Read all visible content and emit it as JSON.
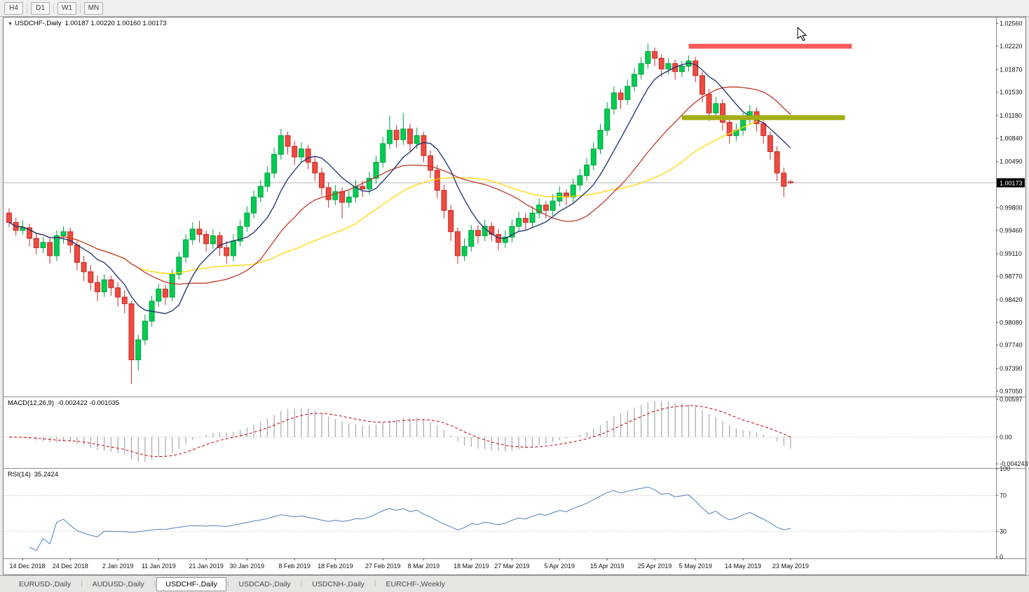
{
  "toolbar": {
    "timeframes": [
      "H4",
      "D1",
      "W1",
      "MN"
    ]
  },
  "chart": {
    "symbol_label": "USDCHF-,Daily",
    "ohlc_label": "1.00187 1.00220 1.00160 1.00173",
    "current_price": "1.00173",
    "price_axis_labels": [
      "1.02560",
      "1.02220",
      "1.01870",
      "1.01530",
      "1.01180",
      "1.00840",
      "1.00490",
      "0.99800",
      "0.99460",
      "0.99110",
      "0.98770",
      "0.98420",
      "0.98080",
      "0.97740",
      "0.97390",
      "0.97050"
    ],
    "time_axis_labels": [
      {
        "text": "14 Dec 2018",
        "bar": 2
      },
      {
        "text": "24 Dec 2018",
        "bar": 9
      },
      {
        "text": "2 Jan 2019",
        "bar": 16
      },
      {
        "text": "11 Jan 2019",
        "bar": 22
      },
      {
        "text": "21 Jan 2019",
        "bar": 29
      },
      {
        "text": "30 Jan 2019",
        "bar": 35
      },
      {
        "text": "8 Feb 2019",
        "bar": 42
      },
      {
        "text": "18 Feb 2019",
        "bar": 48
      },
      {
        "text": "27 Feb 2019",
        "bar": 55
      },
      {
        "text": "8 Mar 2019",
        "bar": 61
      },
      {
        "text": "18 Mar 2019",
        "bar": 68
      },
      {
        "text": "27 Mar 2019",
        "bar": 74
      },
      {
        "text": "5 Apr 2019",
        "bar": 81
      },
      {
        "text": "15 Apr 2019",
        "bar": 88
      },
      {
        "text": "25 Apr 2019",
        "bar": 95
      },
      {
        "text": "5 May 2019",
        "bar": 101
      },
      {
        "text": "14 May 2019",
        "bar": 108
      },
      {
        "text": "23 May 2019",
        "bar": 115
      }
    ],
    "levels": [
      {
        "name": "resistance",
        "price": 1.0222,
        "bar_start": 100,
        "bar_end": 124,
        "color": "#f75d5d"
      },
      {
        "name": "support",
        "price": 1.0115,
        "bar_start": 99,
        "bar_end": 123,
        "color": "#a3ad14"
      }
    ],
    "indicators": {
      "macd": {
        "label": "MACD(12,26,9)",
        "values": "-0.002422 -0.001035",
        "axis_labels": [
          "0.00597",
          "0.00",
          "-0.004243"
        ],
        "params": [
          12,
          26,
          9
        ]
      },
      "rsi": {
        "label": "RSI(14)",
        "value": "35.2424",
        "axis_labels": [
          "100",
          "70",
          "30",
          "0"
        ],
        "period": 14,
        "levels": [
          70,
          30
        ]
      }
    },
    "colors": {
      "candle_up": "#00cd52",
      "candle_up_border": "#00a041",
      "candle_down": "#ef4a41",
      "candle_down_border": "#c03028",
      "price_line": "#b8b8b8",
      "macd_histogram": "#a8a8a8",
      "macd_signal": "#bf0000",
      "rsi_line": "#4f81bd",
      "badge_bg": "#000000"
    }
  },
  "chart_data": {
    "type": "candlestick",
    "symbol": "USDCHF-",
    "timeframe": "Daily",
    "ylim": [
      0.9697,
      1.0265
    ],
    "moving_averages": [
      {
        "name": "slow",
        "period": 34,
        "color": "#ffd800"
      },
      {
        "name": "medium",
        "period": 20,
        "color": "#c0392b"
      },
      {
        "name": "fast",
        "period": 8,
        "color": "#1a2e6e"
      }
    ],
    "ohlc": [
      [
        0.9972,
        0.9979,
        0.9951,
        0.9958
      ],
      [
        0.9958,
        0.9965,
        0.9938,
        0.9946
      ],
      [
        0.9946,
        0.9961,
        0.994,
        0.995
      ],
      [
        0.995,
        0.9956,
        0.9922,
        0.9934
      ],
      [
        0.9934,
        0.9941,
        0.991,
        0.992
      ],
      [
        0.992,
        0.9936,
        0.9912,
        0.9928
      ],
      [
        0.9928,
        0.9934,
        0.9896,
        0.9908
      ],
      [
        0.9908,
        0.9946,
        0.99,
        0.9938
      ],
      [
        0.9938,
        0.9952,
        0.9926,
        0.9944
      ],
      [
        0.9944,
        0.995,
        0.9912,
        0.9924
      ],
      [
        0.9924,
        0.993,
        0.9886,
        0.9898
      ],
      [
        0.9898,
        0.9908,
        0.987,
        0.9884
      ],
      [
        0.9884,
        0.9894,
        0.9856,
        0.9868
      ],
      [
        0.9868,
        0.9878,
        0.984,
        0.9854
      ],
      [
        0.9854,
        0.988,
        0.9846,
        0.9872
      ],
      [
        0.9872,
        0.9878,
        0.9848,
        0.986
      ],
      [
        0.986,
        0.9868,
        0.9832,
        0.9846
      ],
      [
        0.9846,
        0.9856,
        0.9822,
        0.9836
      ],
      [
        0.9836,
        0.984,
        0.9716,
        0.9752
      ],
      [
        0.9752,
        0.979,
        0.9736,
        0.9782
      ],
      [
        0.9782,
        0.982,
        0.9774,
        0.981
      ],
      [
        0.981,
        0.9848,
        0.9802,
        0.984
      ],
      [
        0.984,
        0.9866,
        0.9832,
        0.9858
      ],
      [
        0.9858,
        0.9864,
        0.9834,
        0.9846
      ],
      [
        0.9846,
        0.9888,
        0.984,
        0.988
      ],
      [
        0.988,
        0.9914,
        0.9872,
        0.9906
      ],
      [
        0.9906,
        0.994,
        0.9898,
        0.9932
      ],
      [
        0.9932,
        0.9958,
        0.9924,
        0.9948
      ],
      [
        0.9948,
        0.996,
        0.9928,
        0.994
      ],
      [
        0.994,
        0.9946,
        0.9914,
        0.9926
      ],
      [
        0.9926,
        0.9948,
        0.9918,
        0.9938
      ],
      [
        0.9938,
        0.9944,
        0.9908,
        0.992
      ],
      [
        0.992,
        0.993,
        0.9896,
        0.9908
      ],
      [
        0.9908,
        0.994,
        0.99,
        0.993
      ],
      [
        0.993,
        0.9962,
        0.9922,
        0.9952
      ],
      [
        0.9952,
        0.9982,
        0.9944,
        0.9972
      ],
      [
        0.9972,
        1.0006,
        0.9964,
        0.9996
      ],
      [
        0.9996,
        1.0022,
        0.9988,
        1.0012
      ],
      [
        1.0012,
        1.0042,
        1.0004,
        1.0032
      ],
      [
        1.0032,
        1.007,
        1.0024,
        1.006
      ],
      [
        1.006,
        1.0098,
        1.0052,
        1.0088
      ],
      [
        1.0088,
        1.0094,
        1.006,
        1.0072
      ],
      [
        1.0072,
        1.008,
        1.0044,
        1.0056
      ],
      [
        1.0056,
        1.0078,
        1.0048,
        1.0068
      ],
      [
        1.0068,
        1.0074,
        1.0038,
        1.0048
      ],
      [
        1.0048,
        1.0056,
        1.002,
        1.0032
      ],
      [
        1.0032,
        1.004,
        0.9998,
        1.001
      ],
      [
        1.001,
        1.0018,
        0.998,
        0.9992
      ],
      [
        0.9992,
        1.0014,
        0.9984,
        1.0004
      ],
      [
        1.0004,
        1.001,
        0.9964,
        0.9988
      ],
      [
        0.9988,
        1.0006,
        0.998,
        0.9996
      ],
      [
        0.9996,
        1.0022,
        0.9988,
        1.0012
      ],
      [
        1.0012,
        1.002,
        0.9996,
        1.0008
      ],
      [
        1.0008,
        1.0034,
        1.0,
        1.0024
      ],
      [
        1.0024,
        1.0058,
        1.0016,
        1.0048
      ],
      [
        1.0048,
        1.0086,
        1.004,
        1.0076
      ],
      [
        1.0076,
        1.0118,
        1.0068,
        1.0096
      ],
      [
        1.0096,
        1.0104,
        1.007,
        1.0082
      ],
      [
        1.0082,
        1.0122,
        1.0074,
        1.0098
      ],
      [
        1.0098,
        1.0106,
        1.0064,
        1.0076
      ],
      [
        1.0076,
        1.01,
        1.0068,
        1.0088
      ],
      [
        1.0088,
        1.0094,
        1.0048,
        1.0058
      ],
      [
        1.0058,
        1.0066,
        1.0024,
        1.0036
      ],
      [
        1.0036,
        1.0044,
        0.9994,
        1.0006
      ],
      [
        1.0006,
        1.0014,
        0.9964,
        0.9976
      ],
      [
        0.9976,
        0.9984,
        0.993,
        0.9944
      ],
      [
        0.9944,
        0.995,
        0.9896,
        0.9908
      ],
      [
        0.9908,
        0.9934,
        0.99,
        0.9922
      ],
      [
        0.9922,
        0.9954,
        0.9914,
        0.9946
      ],
      [
        0.9946,
        0.9954,
        0.9926,
        0.9938
      ],
      [
        0.9938,
        0.9962,
        0.993,
        0.9952
      ],
      [
        0.9952,
        0.9958,
        0.993,
        0.994
      ],
      [
        0.994,
        0.9948,
        0.9916,
        0.9928
      ],
      [
        0.9928,
        0.9946,
        0.992,
        0.9936
      ],
      [
        0.9936,
        0.9962,
        0.9928,
        0.9952
      ],
      [
        0.9952,
        0.9974,
        0.9944,
        0.9964
      ],
      [
        0.9964,
        0.9972,
        0.9946,
        0.9958
      ],
      [
        0.9958,
        0.9982,
        0.995,
        0.9972
      ],
      [
        0.9972,
        0.9994,
        0.9964,
        0.9984
      ],
      [
        0.9984,
        0.999,
        0.9964,
        0.9976
      ],
      [
        0.9976,
        1.0,
        0.9968,
        0.999
      ],
      [
        0.999,
        1.0012,
        0.9982,
        1.0002
      ],
      [
        1.0002,
        1.0008,
        0.9984,
        0.9996
      ],
      [
        0.9996,
        1.0024,
        0.9988,
        1.0014
      ],
      [
        1.0014,
        1.0038,
        1.0006,
        1.0028
      ],
      [
        1.0028,
        1.0054,
        1.002,
        1.0044
      ],
      [
        1.0044,
        1.0078,
        1.0036,
        1.0068
      ],
      [
        1.0068,
        1.0106,
        1.006,
        1.0096
      ],
      [
        1.0096,
        1.0138,
        1.0088,
        1.0128
      ],
      [
        1.0128,
        1.0162,
        1.012,
        1.0152
      ],
      [
        1.0152,
        1.0158,
        1.0128,
        1.0142
      ],
      [
        1.0142,
        1.0172,
        1.0134,
        1.0162
      ],
      [
        1.0162,
        1.019,
        1.0154,
        1.018
      ],
      [
        1.018,
        1.0206,
        1.0172,
        1.0196
      ],
      [
        1.0196,
        1.0226,
        1.0188,
        1.0214
      ],
      [
        1.0214,
        1.022,
        1.0192,
        1.0204
      ],
      [
        1.0204,
        1.021,
        1.0176,
        1.0188
      ],
      [
        1.0188,
        1.0204,
        1.018,
        1.0196
      ],
      [
        1.0196,
        1.0202,
        1.0172,
        1.0184
      ],
      [
        1.0184,
        1.02,
        1.0176,
        1.0192
      ],
      [
        1.0192,
        1.0208,
        1.0184,
        1.02
      ],
      [
        1.02,
        1.0206,
        1.0168,
        1.0178
      ],
      [
        1.0178,
        1.0184,
        1.0138,
        1.015
      ],
      [
        1.015,
        1.0158,
        1.011,
        1.0122
      ],
      [
        1.0122,
        1.0146,
        1.0114,
        1.0136
      ],
      [
        1.0136,
        1.0142,
        1.0096,
        1.0108
      ],
      [
        1.0108,
        1.0116,
        1.0076,
        1.0088
      ],
      [
        1.0088,
        1.0106,
        1.008,
        1.0096
      ],
      [
        1.0096,
        1.0122,
        1.0088,
        1.0112
      ],
      [
        1.0112,
        1.0134,
        1.0104,
        1.0124
      ],
      [
        1.0124,
        1.013,
        1.0094,
        1.0106
      ],
      [
        1.0106,
        1.0114,
        1.0076,
        1.0088
      ],
      [
        1.0088,
        1.0094,
        1.0052,
        1.0064
      ],
      [
        1.0064,
        1.0072,
        1.002,
        1.0032
      ],
      [
        1.0032,
        1.004,
        0.9996,
        1.0012
      ],
      [
        1.00187,
        1.0022,
        1.0016,
        1.00173
      ]
    ]
  },
  "tabs": [
    {
      "label": "EURUSD-,Daily",
      "active": false
    },
    {
      "label": "AUDUSD-,Daily",
      "active": false
    },
    {
      "label": "USDCHF-,Daily",
      "active": true
    },
    {
      "label": "USDCAD-,Daily",
      "active": false
    },
    {
      "label": "USDCNH-,Daily",
      "active": false
    },
    {
      "label": "EURCHF-,Weekly",
      "active": false
    }
  ]
}
